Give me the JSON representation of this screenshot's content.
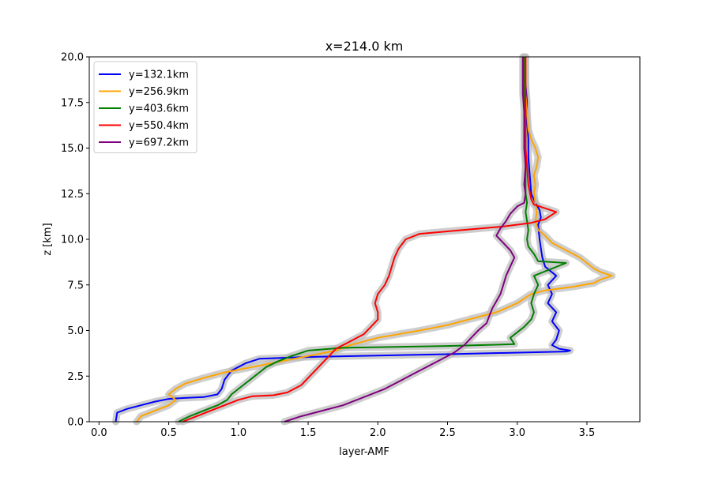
{
  "chart_data": {
    "type": "line",
    "title": "x=214.0 km",
    "xlabel": "layer-AMF",
    "ylabel": "z [km]",
    "xlim": [
      -0.07,
      3.88
    ],
    "ylim": [
      0,
      20
    ],
    "x_ticks": [
      "0.0",
      "0.5",
      "1.0",
      "1.5",
      "2.0",
      "2.5",
      "3.0",
      "3.5"
    ],
    "y_ticks": [
      "0.0",
      "2.5",
      "5.0",
      "7.5",
      "10.0",
      "12.5",
      "15.0",
      "17.5",
      "20.0"
    ],
    "grid": false,
    "legend_position": "top-left",
    "uncertainty_band_color": "#bdbdbd",
    "series": [
      {
        "name": "y=132.1km",
        "color": "#0000ff",
        "points": [
          [
            0.12,
            0
          ],
          [
            0.13,
            0.5
          ],
          [
            0.2,
            0.7
          ],
          [
            0.3,
            0.9
          ],
          [
            0.4,
            1.1
          ],
          [
            0.5,
            1.25
          ],
          [
            0.6,
            1.3
          ],
          [
            0.75,
            1.35
          ],
          [
            0.85,
            1.5
          ],
          [
            0.88,
            1.8
          ],
          [
            0.9,
            2.3
          ],
          [
            0.95,
            2.8
          ],
          [
            1.05,
            3.2
          ],
          [
            1.15,
            3.45
          ],
          [
            1.5,
            3.55
          ],
          [
            2.5,
            3.7
          ],
          [
            3.35,
            3.85
          ],
          [
            3.38,
            3.9
          ],
          [
            3.3,
            4.0
          ],
          [
            3.25,
            4.2
          ],
          [
            3.28,
            4.5
          ],
          [
            3.3,
            5.0
          ],
          [
            3.25,
            5.5
          ],
          [
            3.28,
            6.0
          ],
          [
            3.22,
            6.5
          ],
          [
            3.25,
            7.0
          ],
          [
            3.22,
            7.5
          ],
          [
            3.28,
            8.0
          ],
          [
            3.2,
            8.5
          ],
          [
            3.18,
            9.0
          ],
          [
            3.17,
            9.5
          ],
          [
            3.16,
            10.0
          ],
          [
            3.15,
            10.8
          ],
          [
            3.17,
            11.2
          ],
          [
            3.16,
            11.6
          ],
          [
            3.13,
            12.0
          ],
          [
            3.1,
            12.5
          ],
          [
            3.09,
            13.5
          ],
          [
            3.08,
            14.5
          ],
          [
            3.08,
            15.5
          ],
          [
            3.07,
            16.5
          ],
          [
            3.07,
            17.5
          ],
          [
            3.06,
            18.5
          ],
          [
            3.05,
            19.5
          ],
          [
            3.05,
            20.0
          ]
        ]
      },
      {
        "name": "y=256.9km",
        "color": "#ffa500",
        "points": [
          [
            0.27,
            0
          ],
          [
            0.3,
            0.3
          ],
          [
            0.4,
            0.6
          ],
          [
            0.5,
            0.9
          ],
          [
            0.55,
            1.2
          ],
          [
            0.5,
            1.5
          ],
          [
            0.55,
            1.8
          ],
          [
            0.62,
            2.1
          ],
          [
            0.75,
            2.4
          ],
          [
            0.9,
            2.7
          ],
          [
            1.1,
            3.0
          ],
          [
            1.3,
            3.3
          ],
          [
            1.5,
            3.6
          ],
          [
            1.7,
            3.9
          ],
          [
            1.8,
            4.2
          ],
          [
            2.0,
            4.6
          ],
          [
            2.3,
            5.0
          ],
          [
            2.5,
            5.3
          ],
          [
            2.65,
            5.6
          ],
          [
            2.85,
            6.0
          ],
          [
            3.0,
            6.5
          ],
          [
            3.1,
            7.0
          ],
          [
            3.2,
            7.2
          ],
          [
            3.4,
            7.4
          ],
          [
            3.55,
            7.6
          ],
          [
            3.6,
            7.8
          ],
          [
            3.68,
            8.0
          ],
          [
            3.6,
            8.2
          ],
          [
            3.55,
            8.4
          ],
          [
            3.5,
            8.7
          ],
          [
            3.45,
            9.0
          ],
          [
            3.35,
            9.4
          ],
          [
            3.25,
            9.8
          ],
          [
            3.2,
            10.2
          ],
          [
            3.15,
            10.5
          ],
          [
            3.13,
            11.0
          ],
          [
            3.14,
            11.5
          ],
          [
            3.13,
            12.0
          ],
          [
            3.12,
            12.5
          ],
          [
            3.13,
            13.0
          ],
          [
            3.12,
            13.5
          ],
          [
            3.14,
            14.0
          ],
          [
            3.15,
            14.5
          ],
          [
            3.13,
            15.0
          ],
          [
            3.1,
            15.5
          ],
          [
            3.08,
            16.0
          ],
          [
            3.07,
            17.0
          ],
          [
            3.06,
            18.0
          ],
          [
            3.06,
            19.0
          ],
          [
            3.06,
            20.0
          ]
        ]
      },
      {
        "name": "y=403.6km",
        "color": "#008000",
        "points": [
          [
            0.57,
            0
          ],
          [
            0.65,
            0.3
          ],
          [
            0.75,
            0.6
          ],
          [
            0.85,
            0.9
          ],
          [
            0.92,
            1.2
          ],
          [
            0.95,
            1.5
          ],
          [
            1.0,
            1.8
          ],
          [
            1.05,
            2.1
          ],
          [
            1.1,
            2.4
          ],
          [
            1.15,
            2.7
          ],
          [
            1.2,
            3.0
          ],
          [
            1.28,
            3.3
          ],
          [
            1.38,
            3.6
          ],
          [
            1.5,
            3.9
          ],
          [
            1.75,
            4.05
          ],
          [
            2.5,
            4.15
          ],
          [
            2.98,
            4.25
          ],
          [
            2.95,
            4.6
          ],
          [
            3.0,
            4.9
          ],
          [
            3.05,
            5.2
          ],
          [
            3.1,
            5.6
          ],
          [
            3.12,
            6.0
          ],
          [
            3.1,
            6.5
          ],
          [
            3.12,
            7.0
          ],
          [
            3.15,
            7.5
          ],
          [
            3.12,
            8.0
          ],
          [
            3.35,
            8.7
          ],
          [
            3.15,
            8.8
          ],
          [
            3.12,
            9.2
          ],
          [
            3.08,
            9.6
          ],
          [
            3.07,
            10.0
          ],
          [
            3.08,
            10.5
          ],
          [
            3.07,
            11.0
          ],
          [
            3.06,
            11.5
          ],
          [
            3.07,
            12.0
          ],
          [
            3.06,
            12.5
          ],
          [
            3.06,
            13.0
          ],
          [
            3.06,
            14.0
          ],
          [
            3.06,
            15.0
          ],
          [
            3.06,
            16.0
          ],
          [
            3.06,
            17.0
          ],
          [
            3.05,
            18.0
          ],
          [
            3.05,
            19.0
          ],
          [
            3.05,
            20.0
          ]
        ]
      },
      {
        "name": "y=550.4km",
        "color": "#ff0000",
        "points": [
          [
            0.6,
            0
          ],
          [
            0.7,
            0.3
          ],
          [
            0.8,
            0.6
          ],
          [
            0.9,
            0.9
          ],
          [
            1.0,
            1.2
          ],
          [
            1.1,
            1.4
          ],
          [
            1.25,
            1.45
          ],
          [
            1.35,
            1.6
          ],
          [
            1.45,
            2.0
          ],
          [
            1.5,
            2.4
          ],
          [
            1.55,
            2.8
          ],
          [
            1.6,
            3.2
          ],
          [
            1.65,
            3.6
          ],
          [
            1.7,
            4.0
          ],
          [
            1.8,
            4.4
          ],
          [
            1.9,
            4.8
          ],
          [
            1.95,
            5.2
          ],
          [
            2.0,
            5.6
          ],
          [
            2.0,
            6.0
          ],
          [
            1.98,
            6.5
          ],
          [
            2.0,
            7.0
          ],
          [
            2.05,
            7.5
          ],
          [
            2.08,
            8.0
          ],
          [
            2.1,
            8.5
          ],
          [
            2.12,
            9.0
          ],
          [
            2.15,
            9.5
          ],
          [
            2.2,
            10.0
          ],
          [
            2.3,
            10.3
          ],
          [
            2.6,
            10.5
          ],
          [
            2.9,
            10.7
          ],
          [
            3.1,
            10.9
          ],
          [
            3.2,
            11.1
          ],
          [
            3.28,
            11.5
          ],
          [
            3.2,
            11.7
          ],
          [
            3.12,
            11.9
          ],
          [
            3.1,
            12.2
          ],
          [
            3.08,
            13.0
          ],
          [
            3.07,
            14.0
          ],
          [
            3.06,
            15.0
          ],
          [
            3.06,
            16.0
          ],
          [
            3.06,
            17.0
          ],
          [
            3.06,
            18.0
          ],
          [
            3.06,
            19.0
          ],
          [
            3.06,
            20.0
          ]
        ]
      },
      {
        "name": "y=697.2km",
        "color": "#800080",
        "points": [
          [
            1.33,
            0
          ],
          [
            1.45,
            0.3
          ],
          [
            1.6,
            0.6
          ],
          [
            1.75,
            0.9
          ],
          [
            1.85,
            1.2
          ],
          [
            1.95,
            1.5
          ],
          [
            2.05,
            1.8
          ],
          [
            2.15,
            2.2
          ],
          [
            2.25,
            2.6
          ],
          [
            2.35,
            3.0
          ],
          [
            2.45,
            3.4
          ],
          [
            2.55,
            3.8
          ],
          [
            2.62,
            4.2
          ],
          [
            2.67,
            4.6
          ],
          [
            2.72,
            5.0
          ],
          [
            2.78,
            5.4
          ],
          [
            2.8,
            5.8
          ],
          [
            2.82,
            6.2
          ],
          [
            2.85,
            6.6
          ],
          [
            2.88,
            7.0
          ],
          [
            2.9,
            7.5
          ],
          [
            2.92,
            8.0
          ],
          [
            2.95,
            8.5
          ],
          [
            2.98,
            9.0
          ],
          [
            2.95,
            9.4
          ],
          [
            2.9,
            9.8
          ],
          [
            2.85,
            10.2
          ],
          [
            2.88,
            10.6
          ],
          [
            2.92,
            11.0
          ],
          [
            2.95,
            11.4
          ],
          [
            3.0,
            11.8
          ],
          [
            3.05,
            12.0
          ],
          [
            3.06,
            12.5
          ],
          [
            3.05,
            13.0
          ],
          [
            3.06,
            14.0
          ],
          [
            3.05,
            15.0
          ],
          [
            3.05,
            16.0
          ],
          [
            3.05,
            17.0
          ],
          [
            3.04,
            18.0
          ],
          [
            3.04,
            19.0
          ],
          [
            3.04,
            20.0
          ]
        ]
      }
    ]
  }
}
